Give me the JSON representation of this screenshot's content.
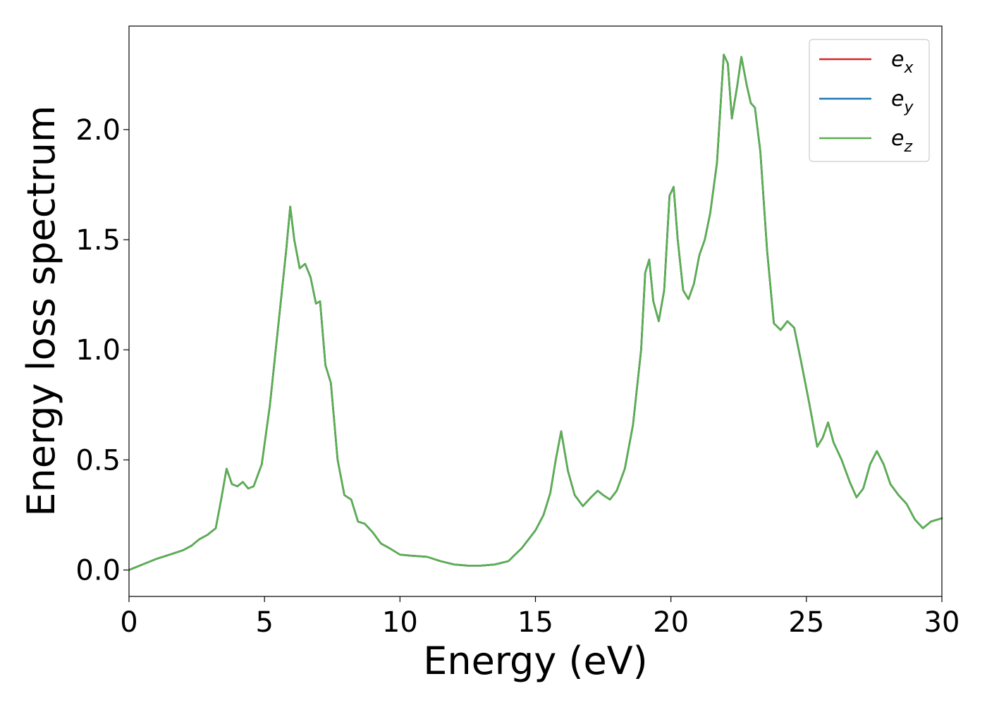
{
  "chart_data": {
    "type": "line",
    "title": "",
    "xlabel": "Energy (eV)",
    "ylabel": "Energy loss spectrum",
    "xlim": [
      0,
      30
    ],
    "ylim": [
      -0.12,
      2.47
    ],
    "xticks": [
      0,
      5,
      10,
      15,
      20,
      25,
      30
    ],
    "xtick_labels": [
      "0",
      "5",
      "10",
      "15",
      "20",
      "25",
      "30"
    ],
    "yticks": [
      0.0,
      0.5,
      1.0,
      1.5,
      2.0
    ],
    "ytick_labels": [
      "0.0",
      "0.5",
      "1.0",
      "1.5",
      "2.0"
    ],
    "grid": false,
    "legend": "top-right",
    "x": [
      0,
      0.5,
      1.0,
      1.5,
      2.0,
      2.3,
      2.6,
      2.9,
      3.2,
      3.4,
      3.6,
      3.8,
      4.0,
      4.2,
      4.4,
      4.6,
      4.9,
      5.2,
      5.5,
      5.8,
      5.95,
      6.1,
      6.3,
      6.5,
      6.7,
      6.9,
      7.05,
      7.25,
      7.45,
      7.7,
      7.95,
      8.2,
      8.45,
      8.7,
      9.0,
      9.3,
      9.6,
      10.0,
      10.4,
      11.0,
      11.5,
      12.0,
      12.5,
      13.0,
      13.5,
      14.0,
      14.5,
      15.0,
      15.3,
      15.55,
      15.75,
      15.95,
      16.2,
      16.45,
      16.75,
      17.05,
      17.3,
      17.5,
      17.75,
      18.0,
      18.3,
      18.6,
      18.9,
      19.05,
      19.2,
      19.35,
      19.55,
      19.75,
      19.95,
      20.1,
      20.25,
      20.45,
      20.65,
      20.85,
      21.05,
      21.25,
      21.45,
      21.7,
      21.95,
      22.1,
      22.25,
      22.45,
      22.6,
      22.8,
      22.95,
      23.1,
      23.3,
      23.55,
      23.8,
      24.05,
      24.3,
      24.55,
      24.8,
      25.1,
      25.4,
      25.6,
      25.8,
      26.0,
      26.3,
      26.6,
      26.85,
      27.1,
      27.35,
      27.6,
      27.85,
      28.1,
      28.4,
      28.7,
      29.0,
      29.3,
      29.6,
      30.0
    ],
    "series": [
      {
        "name": "e_x",
        "label_base": "e",
        "label_sub": "x",
        "color": "#d62728",
        "values": [
          0.0,
          0.025,
          0.05,
          0.07,
          0.09,
          0.11,
          0.14,
          0.16,
          0.19,
          0.32,
          0.46,
          0.39,
          0.38,
          0.4,
          0.37,
          0.38,
          0.48,
          0.75,
          1.1,
          1.45,
          1.65,
          1.5,
          1.37,
          1.39,
          1.33,
          1.21,
          1.22,
          0.93,
          0.85,
          0.5,
          0.34,
          0.32,
          0.22,
          0.21,
          0.17,
          0.12,
          0.1,
          0.07,
          0.065,
          0.06,
          0.04,
          0.025,
          0.02,
          0.02,
          0.025,
          0.04,
          0.1,
          0.18,
          0.25,
          0.35,
          0.5,
          0.63,
          0.45,
          0.34,
          0.29,
          0.33,
          0.36,
          0.34,
          0.32,
          0.36,
          0.46,
          0.66,
          1.0,
          1.35,
          1.41,
          1.22,
          1.13,
          1.27,
          1.7,
          1.74,
          1.5,
          1.27,
          1.23,
          1.3,
          1.43,
          1.5,
          1.62,
          1.85,
          2.34,
          2.3,
          2.05,
          2.2,
          2.33,
          2.2,
          2.12,
          2.1,
          1.9,
          1.45,
          1.12,
          1.09,
          1.13,
          1.1,
          0.95,
          0.76,
          0.56,
          0.6,
          0.67,
          0.58,
          0.5,
          0.4,
          0.33,
          0.37,
          0.48,
          0.54,
          0.48,
          0.39,
          0.34,
          0.3,
          0.23,
          0.19,
          0.22,
          0.235
        ]
      },
      {
        "name": "e_y",
        "label_base": "e",
        "label_sub": "y",
        "color": "#1f77b4",
        "values": [
          0.0,
          0.025,
          0.05,
          0.07,
          0.09,
          0.11,
          0.14,
          0.16,
          0.19,
          0.32,
          0.46,
          0.39,
          0.38,
          0.4,
          0.37,
          0.38,
          0.48,
          0.75,
          1.1,
          1.45,
          1.65,
          1.5,
          1.37,
          1.39,
          1.33,
          1.21,
          1.22,
          0.93,
          0.85,
          0.5,
          0.34,
          0.32,
          0.22,
          0.21,
          0.17,
          0.12,
          0.1,
          0.07,
          0.065,
          0.06,
          0.04,
          0.025,
          0.02,
          0.02,
          0.025,
          0.04,
          0.1,
          0.18,
          0.25,
          0.35,
          0.5,
          0.63,
          0.45,
          0.34,
          0.29,
          0.33,
          0.36,
          0.34,
          0.32,
          0.36,
          0.46,
          0.66,
          1.0,
          1.35,
          1.41,
          1.22,
          1.13,
          1.27,
          1.7,
          1.74,
          1.5,
          1.27,
          1.23,
          1.3,
          1.43,
          1.5,
          1.62,
          1.85,
          2.34,
          2.3,
          2.05,
          2.2,
          2.33,
          2.2,
          2.12,
          2.1,
          1.9,
          1.45,
          1.12,
          1.09,
          1.13,
          1.1,
          0.95,
          0.76,
          0.56,
          0.6,
          0.67,
          0.58,
          0.5,
          0.4,
          0.33,
          0.37,
          0.48,
          0.54,
          0.48,
          0.39,
          0.34,
          0.3,
          0.23,
          0.19,
          0.22,
          0.235
        ]
      },
      {
        "name": "e_z",
        "label_base": "e",
        "label_sub": "z",
        "color": "#5aaf50",
        "values": [
          0.0,
          0.025,
          0.05,
          0.07,
          0.09,
          0.11,
          0.14,
          0.16,
          0.19,
          0.32,
          0.46,
          0.39,
          0.38,
          0.4,
          0.37,
          0.38,
          0.48,
          0.75,
          1.1,
          1.45,
          1.65,
          1.5,
          1.37,
          1.39,
          1.33,
          1.21,
          1.22,
          0.93,
          0.85,
          0.5,
          0.34,
          0.32,
          0.22,
          0.21,
          0.17,
          0.12,
          0.1,
          0.07,
          0.065,
          0.06,
          0.04,
          0.025,
          0.02,
          0.02,
          0.025,
          0.04,
          0.1,
          0.18,
          0.25,
          0.35,
          0.5,
          0.63,
          0.45,
          0.34,
          0.29,
          0.33,
          0.36,
          0.34,
          0.32,
          0.36,
          0.46,
          0.66,
          1.0,
          1.35,
          1.41,
          1.22,
          1.13,
          1.27,
          1.7,
          1.74,
          1.5,
          1.27,
          1.23,
          1.3,
          1.43,
          1.5,
          1.62,
          1.85,
          2.34,
          2.3,
          2.05,
          2.2,
          2.33,
          2.2,
          2.12,
          2.1,
          1.9,
          1.45,
          1.12,
          1.09,
          1.13,
          1.1,
          0.95,
          0.76,
          0.56,
          0.6,
          0.67,
          0.58,
          0.5,
          0.4,
          0.33,
          0.37,
          0.48,
          0.54,
          0.48,
          0.39,
          0.34,
          0.3,
          0.23,
          0.19,
          0.22,
          0.235
        ]
      }
    ]
  }
}
